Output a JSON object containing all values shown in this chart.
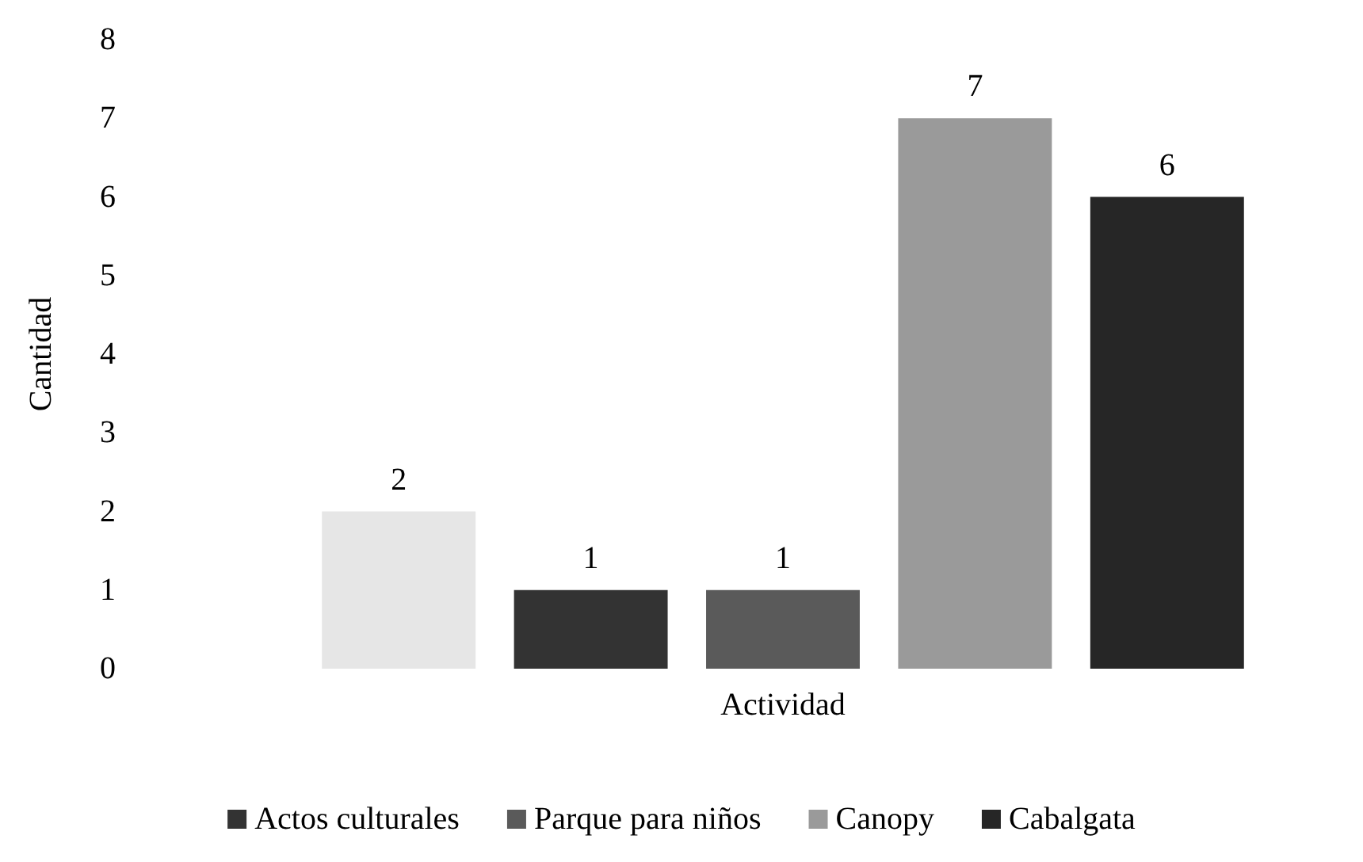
{
  "chart_data": {
    "type": "bar",
    "xlabel": "Actividad",
    "ylabel": "Cantidad",
    "categories": [
      null,
      null,
      null,
      null,
      null
    ],
    "stacked": true,
    "series": [
      {
        "color": "#e6e6e6",
        "values": [
          2,
          null,
          null,
          null,
          null
        ]
      },
      {
        "name": "Actos culturales",
        "color": "#333333",
        "values": [
          null,
          1,
          null,
          null,
          null
        ]
      },
      {
        "name": "Parque para niños",
        "color": "#5a5a5a",
        "values": [
          null,
          null,
          1,
          null,
          null
        ]
      },
      {
        "name": "Canopy",
        "color": "#9a9a9a",
        "values": [
          null,
          null,
          null,
          7,
          null
        ]
      },
      {
        "name": "Cabalgata",
        "color": "#262626",
        "values": [
          null,
          null,
          null,
          null,
          6
        ]
      }
    ],
    "ylim": [
      0,
      8
    ],
    "yticks": [
      0,
      1,
      2,
      3,
      4,
      5,
      6,
      7,
      8
    ],
    "grid": false,
    "legend": "bottom",
    "data_labels": true
  }
}
